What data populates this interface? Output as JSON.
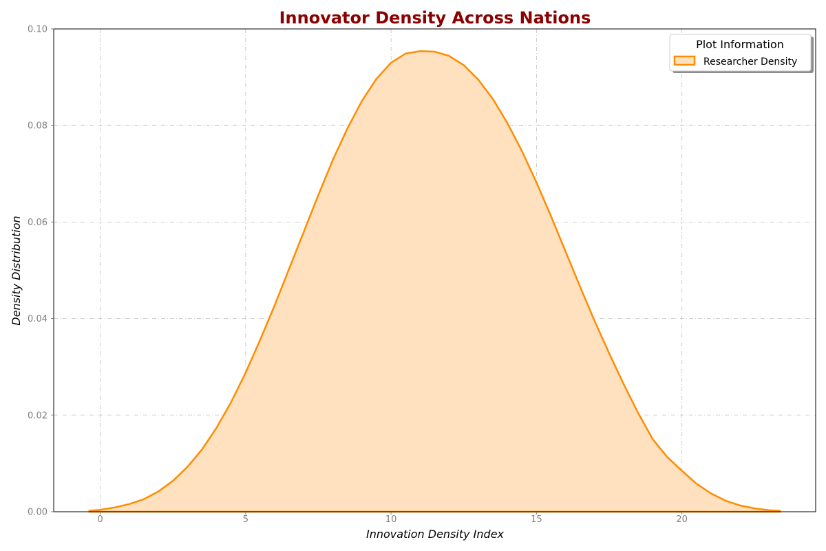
{
  "chart_data": {
    "type": "area",
    "title": "Innovator Density Across Nations",
    "xlabel": "Innovation Density Index",
    "ylabel": "Density Distribution",
    "xlim": [
      -1.6,
      24.6
    ],
    "ylim": [
      0,
      0.1
    ],
    "x_ticks": [
      0,
      5,
      10,
      15,
      20
    ],
    "x_tick_labels": [
      "0",
      "5",
      "10",
      "15",
      "20"
    ],
    "y_ticks": [
      0,
      0.02,
      0.04,
      0.06,
      0.08,
      0.1
    ],
    "y_tick_labels": [
      "0.00",
      "0.02",
      "0.04",
      "0.06",
      "0.08",
      "0.10"
    ],
    "grid": true,
    "legend": {
      "title": "Plot Information",
      "placement": "top-right",
      "entries": [
        "Researcher Density"
      ]
    },
    "colors": {
      "line": "#ff8c00",
      "fill": "#ffe1bf",
      "title": "#8b0000",
      "grid": "#c0c0c0",
      "tick_text": "#7f7f7f"
    },
    "series": [
      {
        "name": "Researcher Density",
        "x": [
          -0.4,
          0,
          0.5,
          1,
          1.5,
          2,
          2.5,
          3,
          3.5,
          4,
          4.5,
          5,
          5.5,
          6,
          6.5,
          7,
          7.5,
          8,
          8.5,
          9,
          9.5,
          10,
          10.5,
          11,
          11.5,
          12,
          12.5,
          13,
          13.5,
          14,
          14.5,
          15,
          15.5,
          16,
          16.5,
          17,
          17.5,
          18,
          18.5,
          19,
          19.5,
          20,
          20.5,
          21,
          21.5,
          22,
          22.5,
          23,
          23.4
        ],
        "y": [
          0.0002,
          0.0004,
          0.0009,
          0.0016,
          0.0026,
          0.0042,
          0.0064,
          0.0093,
          0.0129,
          0.0174,
          0.0227,
          0.0288,
          0.0356,
          0.0428,
          0.0504,
          0.058,
          0.0656,
          0.0729,
          0.0794,
          0.0851,
          0.0897,
          0.093,
          0.0949,
          0.0954,
          0.0953,
          0.0944,
          0.0925,
          0.0895,
          0.0855,
          0.0805,
          0.0747,
          0.0682,
          0.0612,
          0.0539,
          0.0466,
          0.0395,
          0.0328,
          0.0264,
          0.0204,
          0.015,
          0.0113,
          0.0085,
          0.0058,
          0.0038,
          0.0023,
          0.0013,
          0.0007,
          0.0003,
          0.0002
        ]
      }
    ]
  }
}
